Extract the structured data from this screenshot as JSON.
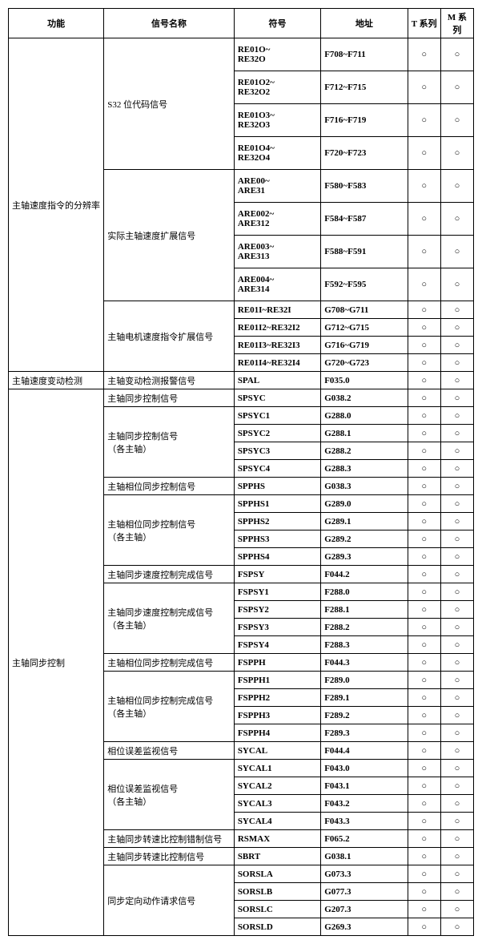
{
  "headers": {
    "func": "功能",
    "name": "信号名称",
    "symbol": "符号",
    "address": "地址",
    "tseries": "T 系列",
    "mseries": "M 系列"
  },
  "mark": "○",
  "group1": {
    "func": "主轴速度指令的分辨率",
    "sub1": {
      "name": "S32 位代码信号",
      "rows": [
        {
          "sym": "RE01O~\nRE32O",
          "addr": "F708~F711"
        },
        {
          "sym": "RE01O2~\nRE32O2",
          "addr": "F712~F715"
        },
        {
          "sym": "RE01O3~\nRE32O3",
          "addr": "F716~F719"
        },
        {
          "sym": "RE01O4~\nRE32O4",
          "addr": "F720~F723"
        }
      ]
    },
    "sub2": {
      "name": "实际主轴速度扩展信号",
      "rows": [
        {
          "sym": "ARE00~\nARE31",
          "addr": "F580~F583"
        },
        {
          "sym": "ARE002~\nARE312",
          "addr": "F584~F587"
        },
        {
          "sym": "ARE003~\nARE313",
          "addr": "F588~F591"
        },
        {
          "sym": "ARE004~\nARE314",
          "addr": "F592~F595"
        }
      ]
    },
    "sub3": {
      "name": "主轴电机速度指令扩展信号",
      "rows": [
        {
          "sym": "RE01I~RE32I",
          "addr": "G708~G711"
        },
        {
          "sym": "RE01I2~RE32I2",
          "addr": "G712~G715"
        },
        {
          "sym": "RE01I3~RE32I3",
          "addr": "G716~G719"
        },
        {
          "sym": "RE01I4~RE32I4",
          "addr": "G720~G723"
        }
      ]
    }
  },
  "group2": {
    "func": "主轴速度变动检测",
    "name": "主轴变动检测报警信号",
    "sym": "SPAL",
    "addr": "F035.0"
  },
  "group3": {
    "func": "主轴同步控制",
    "rows": [
      {
        "name": "主轴同步控制信号",
        "sym": "SPSYC",
        "addr": "G038.2",
        "span": 1
      },
      {
        "name": "主轴同步控制信号\n（各主轴）",
        "rows": [
          {
            "sym": "SPSYC1",
            "addr": "G288.0"
          },
          {
            "sym": "SPSYC2",
            "addr": "G288.1"
          },
          {
            "sym": "SPSYC3",
            "addr": "G288.2"
          },
          {
            "sym": "SPSYC4",
            "addr": "G288.3"
          }
        ]
      },
      {
        "name": "主轴相位同步控制信号",
        "sym": "SPPHS",
        "addr": "G038.3",
        "span": 1
      },
      {
        "name": "主轴相位同步控制信号\n（各主轴）",
        "rows": [
          {
            "sym": "SPPHS1",
            "addr": "G289.0"
          },
          {
            "sym": "SPPHS2",
            "addr": "G289.1"
          },
          {
            "sym": "SPPHS3",
            "addr": "G289.2"
          },
          {
            "sym": "SPPHS4",
            "addr": "G289.3"
          }
        ]
      },
      {
        "name": "主轴同步速度控制完成信号",
        "sym": "FSPSY",
        "addr": "F044.2",
        "span": 1
      },
      {
        "name": "主轴同步速度控制完成信号\n（各主轴）",
        "rows": [
          {
            "sym": "FSPSY1",
            "addr": "F288.0"
          },
          {
            "sym": "FSPSY2",
            "addr": "F288.1"
          },
          {
            "sym": "FSPSY3",
            "addr": "F288.2"
          },
          {
            "sym": "FSPSY4",
            "addr": "F288.3"
          }
        ]
      },
      {
        "name": "主轴相位同步控制完成信号",
        "sym": "FSPPH",
        "addr": "F044.3",
        "span": 1
      },
      {
        "name": "主轴相位同步控制完成信号\n（各主轴）",
        "rows": [
          {
            "sym": "FSPPH1",
            "addr": "F289.0"
          },
          {
            "sym": "FSPPH2",
            "addr": "F289.1"
          },
          {
            "sym": "FSPPH3",
            "addr": "F289.2"
          },
          {
            "sym": "FSPPH4",
            "addr": "F289.3"
          }
        ]
      },
      {
        "name": "相位误差监视信号",
        "sym": "SYCAL",
        "addr": "F044.4",
        "span": 1
      },
      {
        "name": "相位误差监视信号\n（各主轴）",
        "rows": [
          {
            "sym": "SYCAL1",
            "addr": "F043.0"
          },
          {
            "sym": "SYCAL2",
            "addr": "F043.1"
          },
          {
            "sym": "SYCAL3",
            "addr": "F043.2"
          },
          {
            "sym": "SYCAL4",
            "addr": "F043.3"
          }
        ]
      },
      {
        "name": "主轴同步转速比控制错制信号",
        "sym": "RSMAX",
        "addr": "F065.2",
        "span": 1
      },
      {
        "name": "主轴同步转速比控制信号",
        "sym": "SBRT",
        "addr": "G038.1",
        "span": 1
      },
      {
        "name": "同步定向动作请求信号",
        "rows": [
          {
            "sym": "SORSLA",
            "addr": "G073.3"
          },
          {
            "sym": "SORSLB",
            "addr": "G077.3"
          },
          {
            "sym": "SORSLC",
            "addr": "G207.3"
          },
          {
            "sym": "SORSLD",
            "addr": "G269.3"
          }
        ]
      }
    ]
  }
}
